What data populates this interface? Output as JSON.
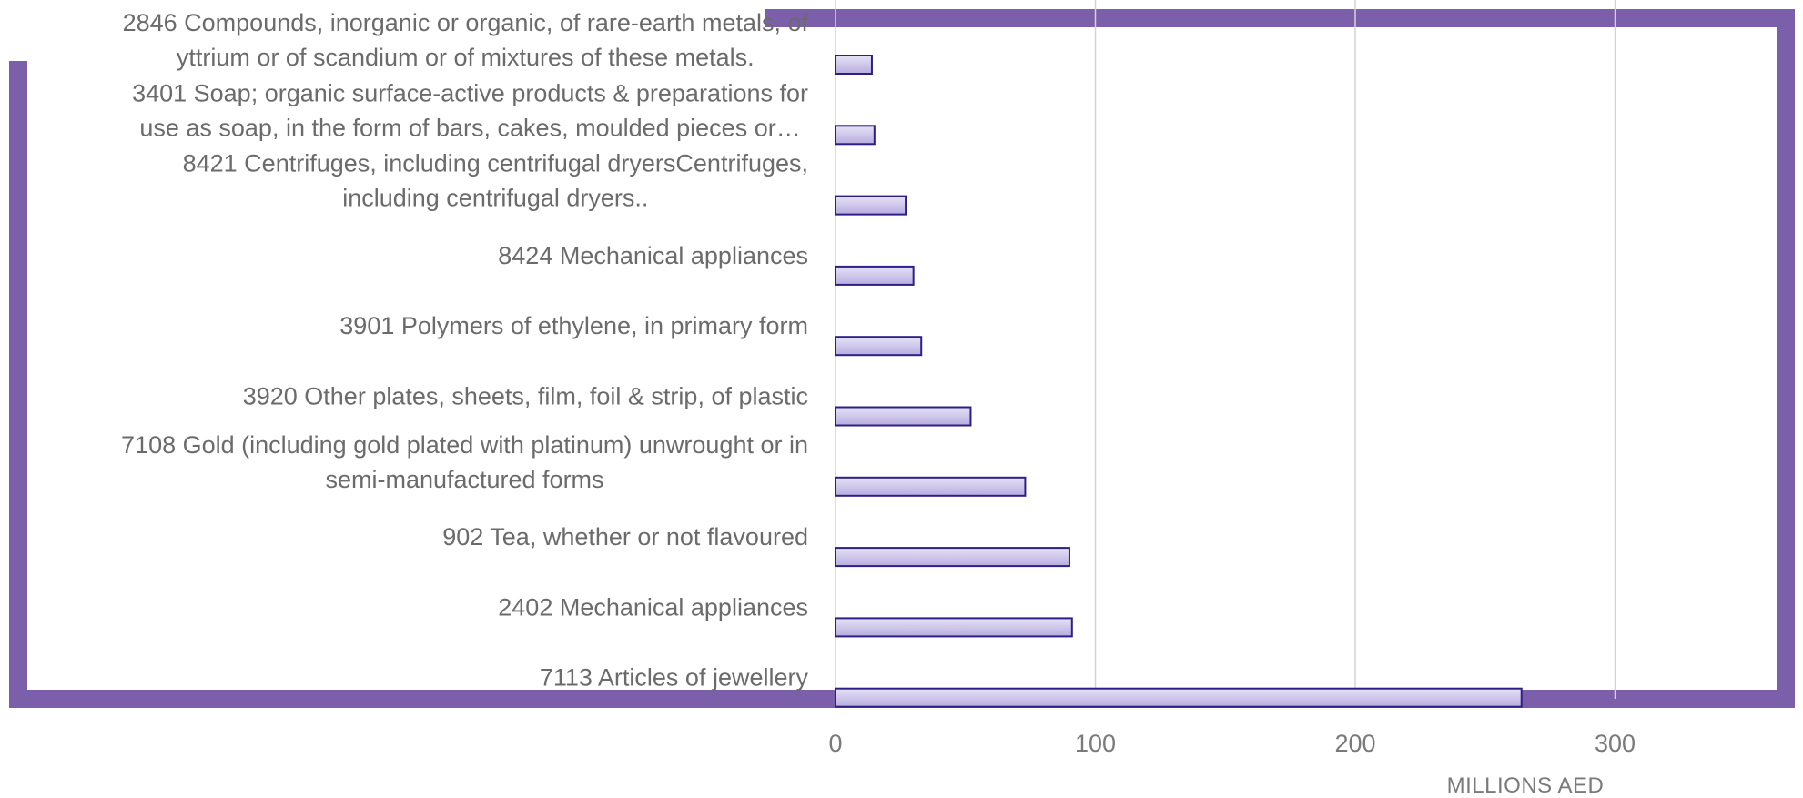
{
  "chart_data": {
    "type": "bar",
    "orientation": "horizontal",
    "categories": [
      [
        "2846 Compounds, inorganic or organic, of rare-earth metals, of",
        "yttrium or of scandium or of mixtures of these metals."
      ],
      [
        "3401 Soap; organic surface-active products & preparations for",
        "use as soap, in the form of bars, cakes, moulded pieces or…"
      ],
      [
        "8421 Centrifuges, including centrifugal dryersCentrifuges,",
        "including centrifugal dryers.."
      ],
      [
        "8424 Mechanical appliances"
      ],
      [
        "3901 Polymers of ethylene, in primary form"
      ],
      [
        "3920 Other plates, sheets, film, foil & strip, of plastic"
      ],
      [
        "7108 Gold (including gold plated with platinum) unwrought or in",
        "semi-manufactured forms"
      ],
      [
        "902 Tea, whether or not flavoured"
      ],
      [
        "2402 Mechanical appliances"
      ],
      [
        "7113 Articles of jewellery"
      ]
    ],
    "values": [
      14,
      15,
      27,
      30,
      33,
      52,
      73,
      90,
      91,
      264
    ],
    "xlabel": "MILLIONS AED",
    "ylabel": "",
    "xlim": [
      0,
      350
    ],
    "xticks": [
      0,
      100,
      200,
      300
    ],
    "grid": "vertical",
    "legend": "none",
    "colors": {
      "bar_fill_top": "#e6e2f7",
      "bar_fill_bottom": "#b7addf",
      "bar_stroke": "#2e1f86",
      "frame": "#7b5faa",
      "grid": "#d4d4d4"
    }
  }
}
